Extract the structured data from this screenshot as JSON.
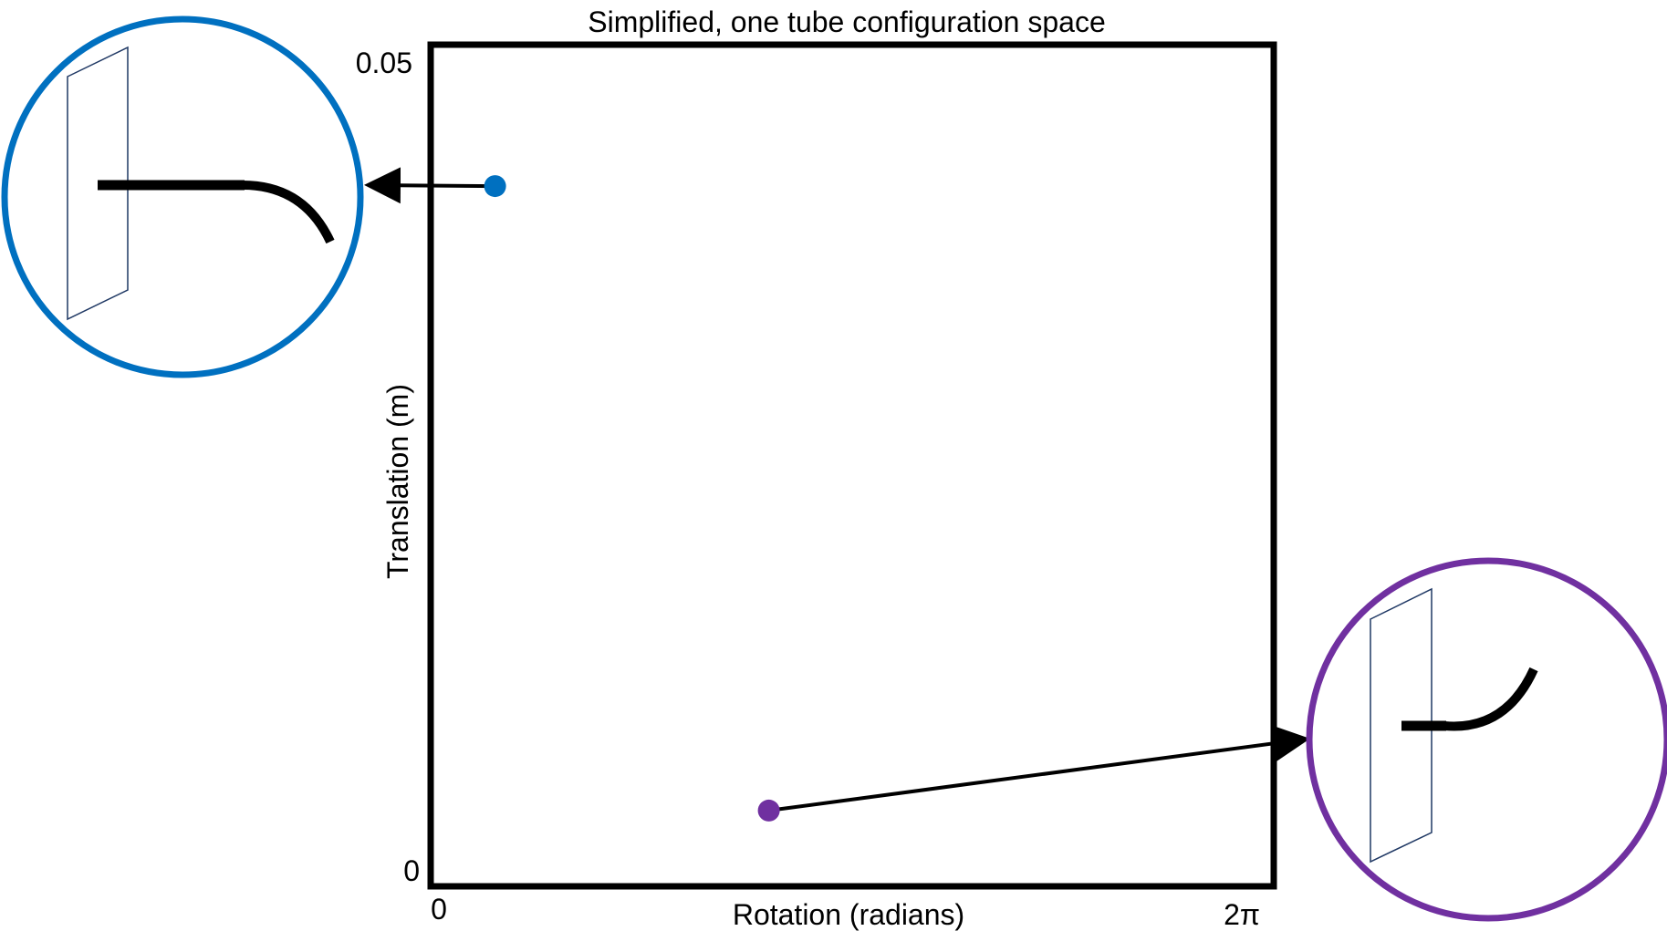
{
  "title": "Simplified, one tube configuration space",
  "x_axis": {
    "label": "Rotation (radians)",
    "min_label": "0",
    "max_label": "2π",
    "range": [
      0,
      6.2832
    ]
  },
  "y_axis": {
    "label": "Translation (m)",
    "min_label": "0",
    "max_label": "0.05",
    "range": [
      0,
      0.05
    ]
  },
  "points": [
    {
      "name": "blue-configuration",
      "rotation": 0.48,
      "translation": 0.0416,
      "color": "#0070C0"
    },
    {
      "name": "purple-configuration",
      "rotation": 2.52,
      "translation": 0.0045,
      "color": "#7030A0"
    }
  ],
  "colors": {
    "frame": "#000000",
    "blue": "#0070C0",
    "purple": "#7030A0",
    "plane_outline": "#1F3864",
    "tube": "#000000"
  }
}
